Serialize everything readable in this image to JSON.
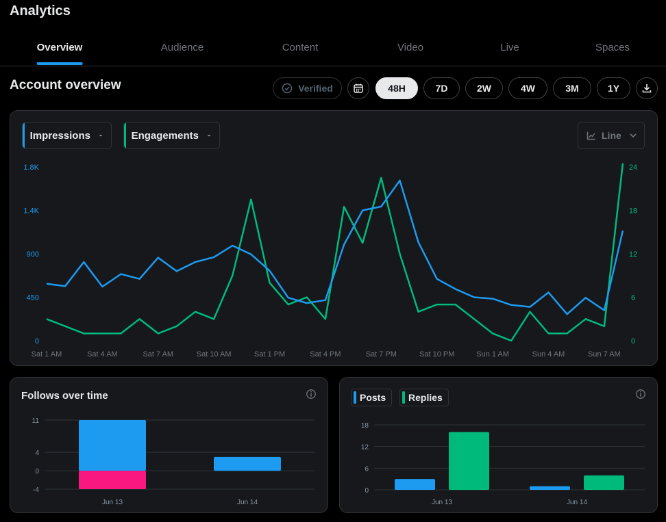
{
  "header": {
    "title": "Analytics"
  },
  "tabs": [
    {
      "label": "Overview",
      "active": true
    },
    {
      "label": "Audience",
      "active": false
    },
    {
      "label": "Content",
      "active": false
    },
    {
      "label": "Video",
      "active": false
    },
    {
      "label": "Live",
      "active": false
    },
    {
      "label": "Spaces",
      "active": false
    }
  ],
  "overview": {
    "title": "Account overview",
    "verified_label": "Verified",
    "ranges": [
      "48H",
      "7D",
      "2W",
      "4W",
      "3M",
      "1Y"
    ],
    "selected_range": "48H"
  },
  "main_chart": {
    "metric_left": "Impressions",
    "metric_right": "Engagements",
    "view_mode": "Line"
  },
  "follows_card": {
    "title": "Follows over time"
  },
  "posts_card": {
    "legend": [
      "Posts",
      "Replies"
    ]
  },
  "colors": {
    "blue": "#1d9bf0",
    "green": "#00ba7c",
    "red": "#f91880"
  },
  "icons": [
    "verified-check-icon",
    "calendar-icon",
    "download-icon",
    "chevron-down-icon",
    "line-chart-icon",
    "info-icon"
  ],
  "chart_data": [
    {
      "type": "line",
      "x_tick_labels": [
        "Sat 1 AM",
        "Sat 4 AM",
        "Sat 7 AM",
        "Sat 10 AM",
        "Sat 1 PM",
        "Sat 4 PM",
        "Sat 7 PM",
        "Sat 10 PM",
        "Sun 1 AM",
        "Sun 4 AM",
        "Sun 7 AM"
      ],
      "y_left_ticks": [
        "0",
        "450",
        "900",
        "1.4K",
        "1.8K"
      ],
      "y_right_ticks": [
        "0",
        "6",
        "12",
        "18",
        "24"
      ],
      "y_left_range": [
        0,
        1800
      ],
      "y_right_range": [
        0,
        24
      ],
      "series": [
        {
          "name": "Impressions",
          "axis": "left",
          "values": [
            590,
            565,
            815,
            560,
            690,
            640,
            860,
            720,
            815,
            865,
            985,
            895,
            725,
            445,
            390,
            420,
            995,
            1350,
            1390,
            1660,
            1020,
            640,
            535,
            450,
            435,
            370,
            350,
            500,
            275,
            445,
            315,
            1140
          ]
        },
        {
          "name": "Engagements",
          "axis": "right",
          "values": [
            3,
            2,
            1,
            1,
            1,
            3,
            1,
            2,
            4,
            3,
            9,
            19.5,
            8,
            5,
            6,
            3,
            18.5,
            13.5,
            22.5,
            12,
            4,
            5,
            5,
            3,
            1,
            0,
            4,
            1,
            1,
            3,
            2,
            24.5
          ]
        }
      ],
      "grid": false
    },
    {
      "type": "bar",
      "categories": [
        "Jun 13",
        "Jun 14"
      ],
      "y_ticks": [
        "-4",
        "0",
        "4",
        "11"
      ],
      "ylim": [
        -4,
        11
      ],
      "series": [
        {
          "color": "blue",
          "values": [
            11,
            3
          ]
        },
        {
          "color": "red",
          "values": [
            -4,
            0
          ]
        }
      ],
      "grid": true
    },
    {
      "type": "bar",
      "categories": [
        "Jun 13",
        "Jun 14"
      ],
      "y_ticks": [
        "0",
        "6",
        "12",
        "18"
      ],
      "ylim": [
        0,
        18
      ],
      "series": [
        {
          "name": "Posts",
          "values": [
            3,
            1
          ]
        },
        {
          "name": "Replies",
          "values": [
            16,
            4
          ]
        }
      ],
      "grid": true
    }
  ]
}
